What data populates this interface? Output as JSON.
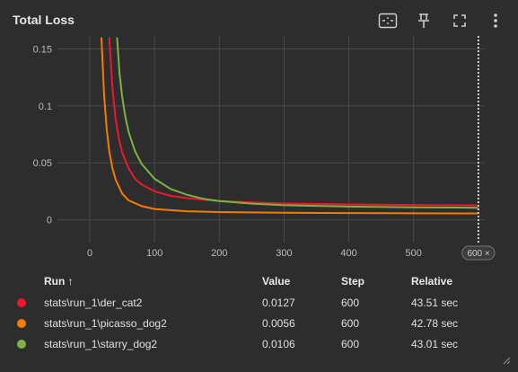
{
  "card": {
    "title": "Total Loss"
  },
  "toolbar": {
    "icons": [
      "fit-domain-icon",
      "pin-icon",
      "fullscreen-icon",
      "more-vert-icon"
    ]
  },
  "chart_data": {
    "type": "line",
    "xlim": [
      -50,
      610
    ],
    "ylim": [
      -0.02,
      0.155
    ],
    "x_ticks": [
      0,
      100,
      200,
      300,
      400,
      500
    ],
    "y_ticks": [
      0,
      0.05,
      0.1,
      0.15
    ],
    "x_tick_labels": [
      "0",
      "100",
      "200",
      "300",
      "400",
      "500"
    ],
    "y_tick_labels": [
      "0",
      "0.05",
      "0.1",
      "0.15"
    ],
    "grid": true,
    "cursor_step": 600,
    "cursor_label": "600",
    "series": [
      {
        "name": "stats\\run_1\\der_cat2",
        "color": "#f0162f",
        "x": [
          30,
          35,
          40,
          45,
          50,
          60,
          70,
          80,
          100,
          125,
          150,
          200,
          250,
          300,
          400,
          500,
          600
        ],
        "y": [
          0.16,
          0.115,
          0.088,
          0.071,
          0.059,
          0.045,
          0.036,
          0.031,
          0.025,
          0.021,
          0.019,
          0.0165,
          0.0152,
          0.0143,
          0.0135,
          0.013,
          0.0127
        ]
      },
      {
        "name": "stats\\run_1\\picasso_dog2",
        "color": "#f57c00",
        "x": [
          18,
          22,
          26,
          30,
          35,
          40,
          50,
          60,
          80,
          100,
          150,
          200,
          300,
          400,
          500,
          600
        ],
        "y": [
          0.16,
          0.11,
          0.08,
          0.06,
          0.045,
          0.035,
          0.023,
          0.017,
          0.012,
          0.0095,
          0.0075,
          0.0068,
          0.0062,
          0.0059,
          0.0057,
          0.0056
        ]
      },
      {
        "name": "stats\\run_1\\starry_dog2",
        "color": "#7cb342",
        "x": [
          42,
          46,
          50,
          55,
          60,
          70,
          80,
          100,
          125,
          150,
          175,
          200,
          250,
          300,
          400,
          500,
          600
        ],
        "y": [
          0.16,
          0.128,
          0.108,
          0.09,
          0.077,
          0.06,
          0.049,
          0.036,
          0.027,
          0.022,
          0.0185,
          0.0165,
          0.0142,
          0.0128,
          0.0116,
          0.011,
          0.0106
        ]
      }
    ]
  },
  "table": {
    "headers": {
      "run": "Run ↑",
      "value": "Value",
      "step": "Step",
      "relative": "Relative"
    },
    "rows": [
      {
        "color": "#f0162f",
        "run": "stats\\run_1\\der_cat2",
        "value": "0.0127",
        "step": "600",
        "relative": "43.51 sec"
      },
      {
        "color": "#f57c00",
        "run": "stats\\run_1\\picasso_dog2",
        "value": "0.0056",
        "step": "600",
        "relative": "42.78 sec"
      },
      {
        "color": "#7cb342",
        "run": "stats\\run_1\\starry_dog2",
        "value": "0.0106",
        "step": "600",
        "relative": "43.01 sec"
      }
    ]
  }
}
